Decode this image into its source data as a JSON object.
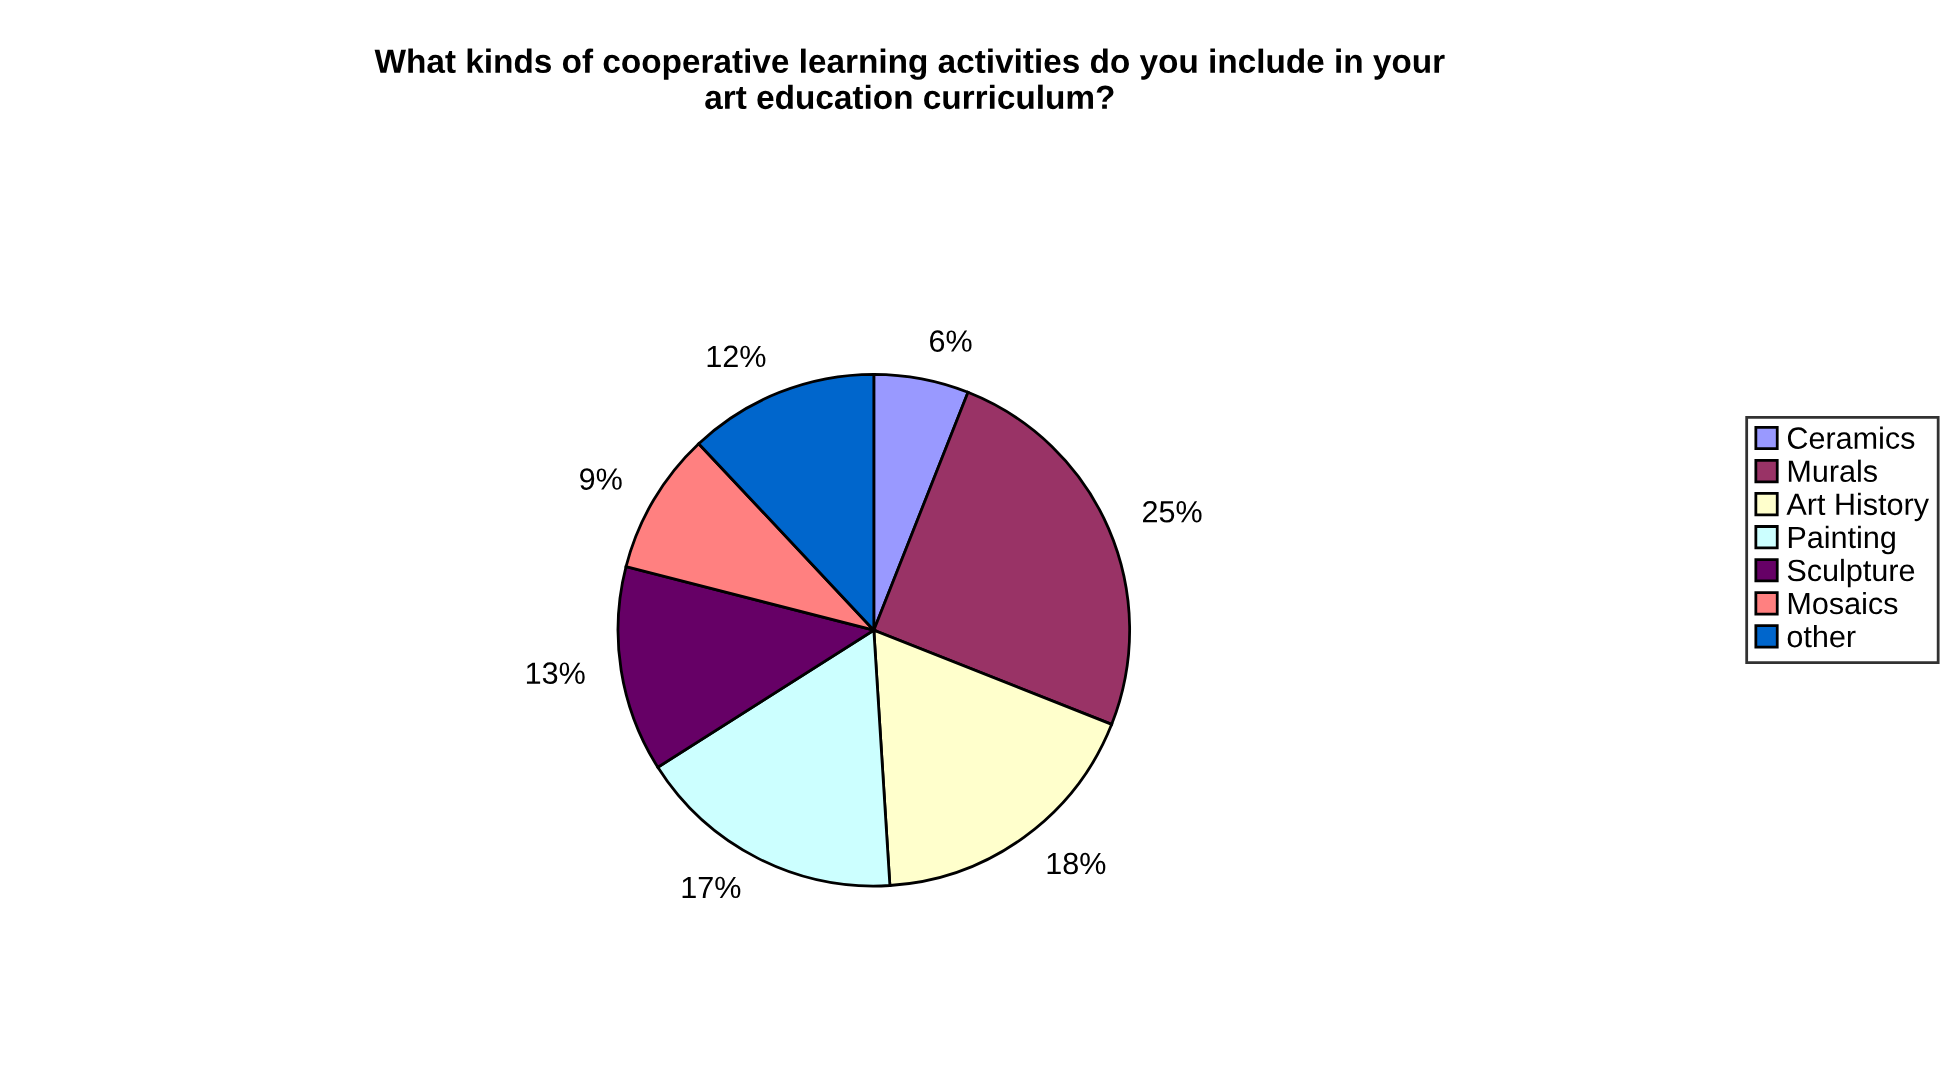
{
  "chart_data": {
    "type": "pie",
    "title": "What kinds of cooperative learning activities do you include in your\nart education curriculum?",
    "categories": [
      "Ceramics",
      "Murals",
      "Art History",
      "Painting",
      "Sculpture",
      "Mosaics",
      "other"
    ],
    "values": [
      6,
      25,
      18,
      17,
      13,
      9,
      12
    ],
    "value_labels": [
      "6%",
      "25%",
      "18%",
      "17%",
      "13%",
      "9%",
      "12%"
    ],
    "colors": [
      "#9999ff",
      "#993366",
      "#ffffcc",
      "#ccffff",
      "#660066",
      "#ff8080",
      "#0066cc"
    ],
    "legend": "right"
  }
}
